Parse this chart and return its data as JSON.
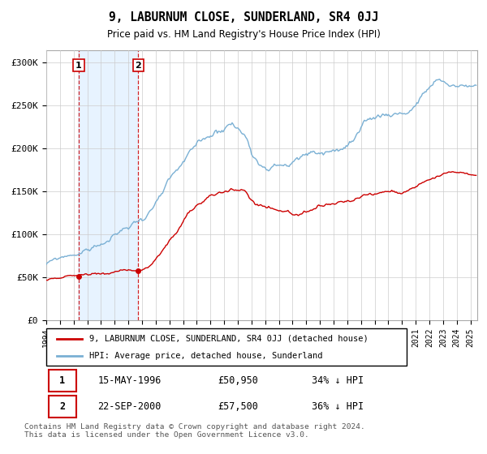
{
  "title": "9, LABURNUM CLOSE, SUNDERLAND, SR4 0JJ",
  "subtitle": "Price paid vs. HM Land Registry's House Price Index (HPI)",
  "ylabel_ticks": [
    "£0",
    "£50K",
    "£100K",
    "£150K",
    "£200K",
    "£250K",
    "£300K"
  ],
  "ytick_values": [
    0,
    50000,
    100000,
    150000,
    200000,
    250000,
    300000
  ],
  "ylim": [
    0,
    315000
  ],
  "xlim_start": 1994.0,
  "xlim_end": 2025.5,
  "sale1_x": 1996.37,
  "sale1_y": 50950,
  "sale2_x": 2000.72,
  "sale2_y": 57500,
  "sale1_label": "1",
  "sale2_label": "2",
  "sale_color": "#cc0000",
  "hpi_color": "#7ab0d4",
  "shade_color": "#ddeeff",
  "shade_alpha": 0.7,
  "legend_line1": "9, LABURNUM CLOSE, SUNDERLAND, SR4 0JJ (detached house)",
  "legend_line2": "HPI: Average price, detached house, Sunderland",
  "table_row1": [
    "1",
    "15-MAY-1996",
    "£50,950",
    "34% ↓ HPI"
  ],
  "table_row2": [
    "2",
    "22-SEP-2000",
    "£57,500",
    "36% ↓ HPI"
  ],
  "footnote": "Contains HM Land Registry data © Crown copyright and database right 2024.\nThis data is licensed under the Open Government Licence v3.0.",
  "background_color": "#ffffff",
  "plot_bg_color": "#ffffff",
  "grid_color": "#cccccc"
}
